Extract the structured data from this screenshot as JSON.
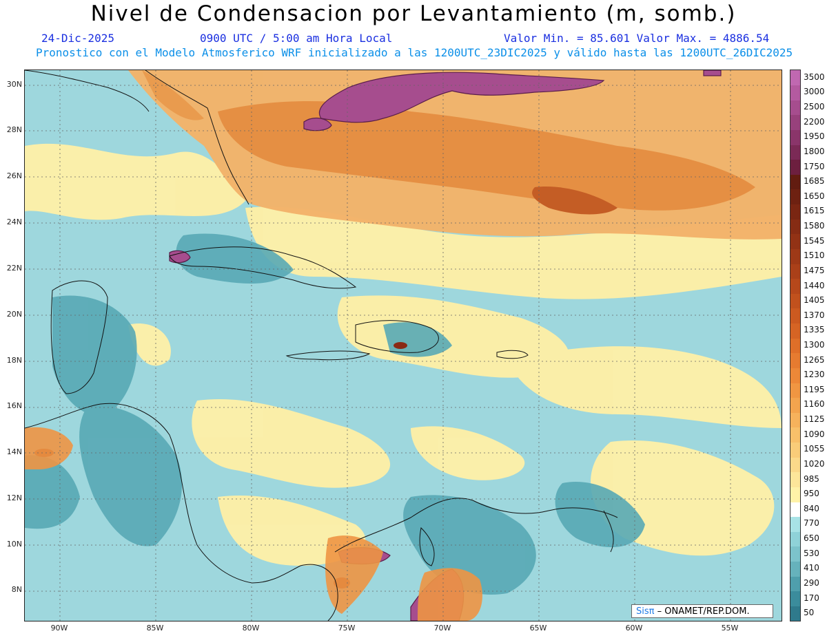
{
  "header": {
    "title": "Nivel de Condensacion por Levantamiento (m, somb.)",
    "date": "24-Dic-2025",
    "time": "0900 UTC / 5:00 am Hora Local",
    "min_max": "Valor Min. = 85.601  Valor Max. = 4886.54",
    "model_info": "Pronostico con el Modelo Atmosferico WRF inicializado a las 1200UTC_23DIC2025 y válido hasta las  1200UTC_26DIC2025"
  },
  "axes": {
    "lat_ticks": [
      "30N",
      "28N",
      "26N",
      "24N",
      "22N",
      "20N",
      "18N",
      "16N",
      "14N",
      "12N",
      "10N",
      "8N"
    ],
    "lon_ticks": [
      "90W",
      "85W",
      "80W",
      "75W",
      "70W",
      "65W",
      "60W",
      "55W"
    ]
  },
  "colorbar": {
    "levels": [
      "50",
      "170",
      "290",
      "410",
      "530",
      "650",
      "770",
      "840",
      "950",
      "985",
      "1020",
      "1055",
      "1090",
      "1125",
      "1160",
      "1195",
      "1230",
      "1265",
      "1300",
      "1335",
      "1370",
      "1405",
      "1440",
      "1475",
      "1510",
      "1545",
      "1580",
      "1615",
      "1650",
      "1685",
      "1750",
      "1800",
      "1950",
      "2200",
      "2500",
      "3000",
      "3500"
    ],
    "colors": [
      "#2f7a8c",
      "#3b8c9c",
      "#4f9fac",
      "#66b2bc",
      "#7cc3cb",
      "#8fd2d8",
      "#a8e3e6",
      "#ffffff",
      "#fff2a8",
      "#fde69a",
      "#fbd98a",
      "#f9cc79",
      "#f8c06a",
      "#f6b25c",
      "#f3a44e",
      "#f09642",
      "#ec8838",
      "#e67b30",
      "#df6f29",
      "#d66424",
      "#cc5a20",
      "#c1511d",
      "#b6481b",
      "#aa4019",
      "#9e3917",
      "#923215",
      "#862c14",
      "#7a2612",
      "#6e2111",
      "#621c10",
      "#6d1f3f",
      "#7b2a56",
      "#8a356a",
      "#98417c",
      "#a64d8e",
      "#b45aa0",
      "#c068b1"
    ]
  },
  "credit": {
    "logo": "Sisπ",
    "text": "– ONAMET/REP.DOM."
  }
}
